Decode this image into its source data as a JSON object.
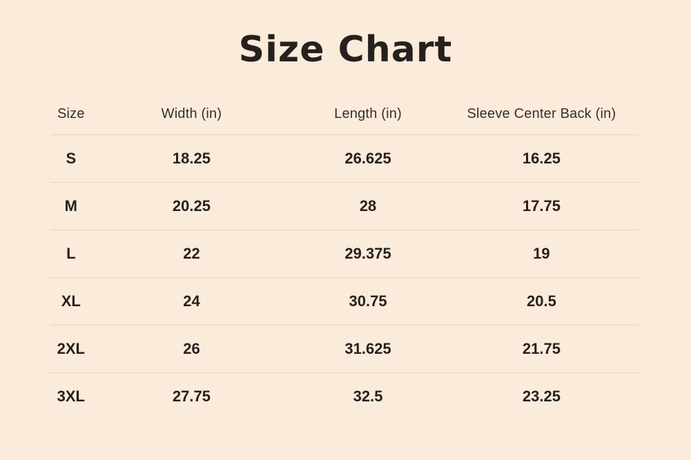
{
  "page": {
    "background_color": "#faebdb",
    "text_color": "#26201e",
    "header_text_color": "#35302c",
    "divider_color": "#e3d5c5"
  },
  "chart_data": {
    "type": "table",
    "title": "Size Chart",
    "columns": [
      "Size",
      "Width (in)",
      "Length (in)",
      "Sleeve Center Back (in)"
    ],
    "rows": [
      [
        "S",
        "18.25",
        "26.625",
        "16.25"
      ],
      [
        "M",
        "20.25",
        "28",
        "17.75"
      ],
      [
        "L",
        "22",
        "29.375",
        "19"
      ],
      [
        "XL",
        "24",
        "30.75",
        "20.5"
      ],
      [
        "2XL",
        "26",
        "31.625",
        "21.75"
      ],
      [
        "3XL",
        "27.75",
        "32.5",
        "23.25"
      ]
    ],
    "layout": {
      "grid": "horizontal dividers between rows only, no outer border, no line under last row",
      "column_alignment": "center",
      "title_position": "top-center"
    }
  }
}
